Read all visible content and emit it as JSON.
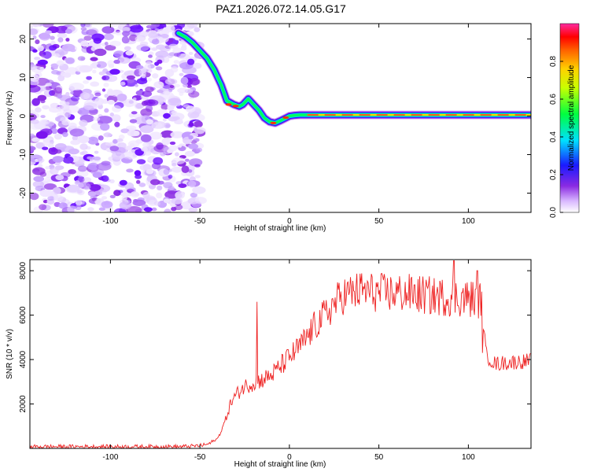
{
  "title": "PAZ1.2026.072.14.05.G17",
  "chart_data": [
    {
      "type": "heatmap",
      "xlabel": "Height of straight line (km)",
      "ylabel": "Frequency (Hz)",
      "xlim": [
        -145,
        135
      ],
      "ylim": [
        -25,
        24
      ],
      "xticks": [
        -100,
        -50,
        0,
        50,
        100
      ],
      "yticks": [
        -20,
        -10,
        0,
        10,
        20
      ],
      "noise_region_x": [
        -145,
        -52
      ],
      "signal_ridge": {
        "x": [
          -62,
          -58,
          -54,
          -50,
          -46,
          -42,
          -38,
          -35,
          -31,
          -28,
          -26,
          -23,
          -20,
          -17,
          -14,
          -11,
          -8,
          -5,
          -2,
          0,
          3,
          6,
          10,
          135
        ],
        "y": [
          21.5,
          20.5,
          19,
          17,
          15,
          12,
          8,
          4,
          3,
          2.5,
          3,
          4.5,
          3,
          1.5,
          -0.5,
          -1.5,
          -1.8,
          -1.2,
          -0.5,
          0,
          0.2,
          0.3,
          0.3,
          0.3
        ],
        "peak_amplitude": 0.95
      },
      "colorbar": {
        "label": "Normalized spectral amplitude",
        "range": [
          0,
          1
        ],
        "ticks": [
          "0.0",
          "0.2",
          "0.4",
          "0.6",
          "0.8"
        ]
      }
    },
    {
      "type": "line",
      "xlabel": "Height of straight line (km)",
      "ylabel": "SNR (10 * v/v)",
      "xlim": [
        -145,
        135
      ],
      "ylim": [
        0,
        8500
      ],
      "xticks": [
        -100,
        -50,
        0,
        50,
        100
      ],
      "yticks": [
        2000,
        4000,
        6000,
        8000
      ],
      "color": "#ee2222",
      "series": [
        {
          "name": "SNR",
          "x": [
            -145,
            -60,
            -50,
            -45,
            -40,
            -36,
            -33,
            -30,
            -25,
            -20,
            -15,
            -10,
            -5,
            0,
            5,
            10,
            15,
            20,
            25,
            30,
            40,
            50,
            60,
            70,
            80,
            90,
            100,
            107,
            110,
            115,
            120,
            135
          ],
          "y": [
            80,
            80,
            120,
            200,
            450,
            1200,
            2000,
            2400,
            2800,
            2950,
            3100,
            3300,
            3700,
            4100,
            4500,
            5000,
            5600,
            6000,
            6500,
            6900,
            7100,
            7000,
            7000,
            6950,
            6850,
            6800,
            6750,
            6700,
            4200,
            3800,
            3850,
            3950
          ],
          "spikes": [
            {
              "x": -18,
              "y": 6600
            },
            {
              "x": 92,
              "y": 8450
            },
            {
              "x": 105,
              "y": 8000
            }
          ]
        }
      ]
    }
  ]
}
